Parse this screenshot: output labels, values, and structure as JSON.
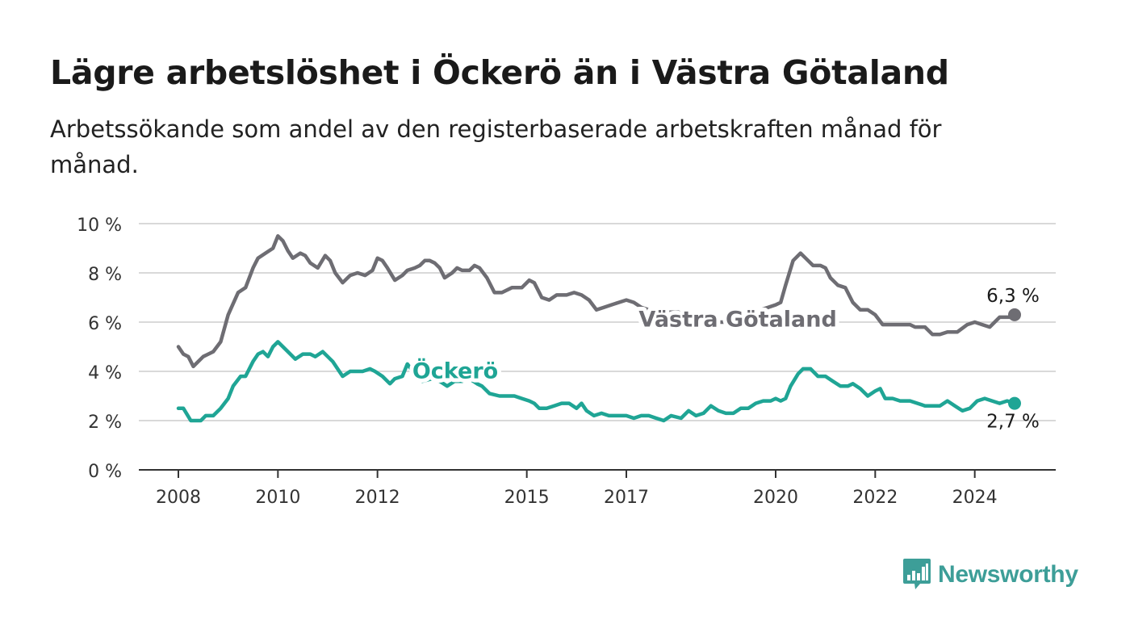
{
  "header": {
    "title": "Lägre arbetslöshet i Öckerö än i Västra Götaland",
    "subtitle": "Arbetssökande som andel av den registerbaserade arbetskraften månad för månad."
  },
  "brand": {
    "name": "Newsworthy",
    "color": "#3d9e98",
    "icon": "newsworthy-bar-chart-icon"
  },
  "colors": {
    "vastra": "#6e6d73",
    "ockero": "#1fa595",
    "grid": "#d9d9d9",
    "axis": "#333333"
  },
  "chart_data": {
    "type": "line",
    "x_unit": "year",
    "xlim": [
      2008,
      2025.8
    ],
    "ylim": [
      0,
      10
    ],
    "y_ticks": [
      0,
      2,
      4,
      6,
      8,
      10
    ],
    "y_tick_labels": [
      "0 %",
      "2 %",
      "4 %",
      "6 %",
      "8 %",
      "10 %"
    ],
    "x_ticks": [
      2008,
      2010,
      2012,
      2015,
      2017,
      2020,
      2022,
      2024
    ],
    "x_tick_labels": [
      "2008",
      "2010",
      "2012",
      "2015",
      "2017",
      "2020",
      "2022",
      "2024"
    ],
    "grid": "horizontal",
    "series": [
      {
        "name": "Västra Götaland",
        "color": "#6e6d73",
        "end_label": "6,3 %",
        "points": [
          [
            2008.0,
            5.0
          ],
          [
            2008.1,
            4.7
          ],
          [
            2008.2,
            4.6
          ],
          [
            2008.3,
            4.2
          ],
          [
            2008.5,
            4.6
          ],
          [
            2008.7,
            4.8
          ],
          [
            2008.85,
            5.2
          ],
          [
            2009.0,
            6.3
          ],
          [
            2009.2,
            7.2
          ],
          [
            2009.35,
            7.4
          ],
          [
            2009.5,
            8.2
          ],
          [
            2009.6,
            8.6
          ],
          [
            2009.75,
            8.8
          ],
          [
            2009.9,
            9.0
          ],
          [
            2010.0,
            9.5
          ],
          [
            2010.1,
            9.3
          ],
          [
            2010.2,
            8.9
          ],
          [
            2010.3,
            8.6
          ],
          [
            2010.45,
            8.8
          ],
          [
            2010.55,
            8.7
          ],
          [
            2010.65,
            8.4
          ],
          [
            2010.8,
            8.2
          ],
          [
            2010.95,
            8.7
          ],
          [
            2011.05,
            8.5
          ],
          [
            2011.15,
            8.0
          ],
          [
            2011.3,
            7.6
          ],
          [
            2011.45,
            7.9
          ],
          [
            2011.6,
            8.0
          ],
          [
            2011.75,
            7.9
          ],
          [
            2011.9,
            8.1
          ],
          [
            2012.0,
            8.6
          ],
          [
            2012.1,
            8.5
          ],
          [
            2012.2,
            8.2
          ],
          [
            2012.35,
            7.7
          ],
          [
            2012.5,
            7.9
          ],
          [
            2012.6,
            8.1
          ],
          [
            2012.75,
            8.2
          ],
          [
            2012.85,
            8.3
          ],
          [
            2012.95,
            8.5
          ],
          [
            2013.05,
            8.5
          ],
          [
            2013.15,
            8.4
          ],
          [
            2013.25,
            8.2
          ],
          [
            2013.35,
            7.8
          ],
          [
            2013.5,
            8.0
          ],
          [
            2013.6,
            8.2
          ],
          [
            2013.7,
            8.1
          ],
          [
            2013.85,
            8.1
          ],
          [
            2013.95,
            8.3
          ],
          [
            2014.05,
            8.2
          ],
          [
            2014.2,
            7.8
          ],
          [
            2014.35,
            7.2
          ],
          [
            2014.5,
            7.2
          ],
          [
            2014.7,
            7.4
          ],
          [
            2014.9,
            7.4
          ],
          [
            2015.05,
            7.7
          ],
          [
            2015.15,
            7.6
          ],
          [
            2015.3,
            7.0
          ],
          [
            2015.45,
            6.9
          ],
          [
            2015.6,
            7.1
          ],
          [
            2015.8,
            7.1
          ],
          [
            2015.95,
            7.2
          ],
          [
            2016.1,
            7.1
          ],
          [
            2016.25,
            6.9
          ],
          [
            2016.4,
            6.5
          ],
          [
            2016.55,
            6.6
          ],
          [
            2016.7,
            6.7
          ],
          [
            2016.85,
            6.8
          ],
          [
            2017.0,
            6.9
          ],
          [
            2017.15,
            6.8
          ],
          [
            2017.3,
            6.6
          ],
          [
            2017.45,
            6.5
          ],
          [
            2017.6,
            6.5
          ],
          [
            2017.75,
            6.4
          ],
          [
            2017.9,
            6.4
          ],
          [
            2018.05,
            6.4
          ],
          [
            2018.2,
            6.3
          ],
          [
            2018.35,
            6.2
          ],
          [
            2018.5,
            6.1
          ],
          [
            2018.65,
            6.1
          ],
          [
            2018.8,
            6.0
          ],
          [
            2018.95,
            6.0
          ],
          [
            2019.1,
            6.1
          ],
          [
            2019.25,
            6.2
          ],
          [
            2019.4,
            6.3
          ],
          [
            2019.55,
            6.4
          ],
          [
            2019.7,
            6.5
          ],
          [
            2019.85,
            6.6
          ],
          [
            2020.0,
            6.7
          ],
          [
            2020.1,
            6.8
          ],
          [
            2020.2,
            7.5
          ],
          [
            2020.35,
            8.5
          ],
          [
            2020.5,
            8.8
          ],
          [
            2020.6,
            8.6
          ],
          [
            2020.75,
            8.3
          ],
          [
            2020.9,
            8.3
          ],
          [
            2021.0,
            8.2
          ],
          [
            2021.1,
            7.8
          ],
          [
            2021.25,
            7.5
          ],
          [
            2021.4,
            7.4
          ],
          [
            2021.55,
            6.8
          ],
          [
            2021.7,
            6.5
          ],
          [
            2021.85,
            6.5
          ],
          [
            2022.0,
            6.3
          ],
          [
            2022.15,
            5.9
          ],
          [
            2022.3,
            5.9
          ],
          [
            2022.5,
            5.9
          ],
          [
            2022.7,
            5.9
          ],
          [
            2022.8,
            5.8
          ],
          [
            2023.0,
            5.8
          ],
          [
            2023.15,
            5.5
          ],
          [
            2023.3,
            5.5
          ],
          [
            2023.45,
            5.6
          ],
          [
            2023.65,
            5.6
          ],
          [
            2023.85,
            5.9
          ],
          [
            2024.0,
            6.0
          ],
          [
            2024.15,
            5.9
          ],
          [
            2024.3,
            5.8
          ],
          [
            2024.5,
            6.2
          ],
          [
            2024.7,
            6.2
          ],
          [
            2024.8,
            6.3
          ]
        ]
      },
      {
        "name": "Öckerö",
        "color": "#1fa595",
        "end_label": "2,7 %",
        "points": [
          [
            2008.0,
            2.5
          ],
          [
            2008.1,
            2.5
          ],
          [
            2008.25,
            2.0
          ],
          [
            2008.45,
            2.0
          ],
          [
            2008.55,
            2.2
          ],
          [
            2008.7,
            2.2
          ],
          [
            2008.85,
            2.5
          ],
          [
            2009.0,
            2.9
          ],
          [
            2009.1,
            3.4
          ],
          [
            2009.25,
            3.8
          ],
          [
            2009.35,
            3.8
          ],
          [
            2009.5,
            4.4
          ],
          [
            2009.6,
            4.7
          ],
          [
            2009.7,
            4.8
          ],
          [
            2009.8,
            4.6
          ],
          [
            2009.9,
            5.0
          ],
          [
            2010.0,
            5.2
          ],
          [
            2010.1,
            5.0
          ],
          [
            2010.2,
            4.8
          ],
          [
            2010.35,
            4.5
          ],
          [
            2010.5,
            4.7
          ],
          [
            2010.65,
            4.7
          ],
          [
            2010.75,
            4.6
          ],
          [
            2010.9,
            4.8
          ],
          [
            2011.0,
            4.6
          ],
          [
            2011.1,
            4.4
          ],
          [
            2011.2,
            4.1
          ],
          [
            2011.3,
            3.8
          ],
          [
            2011.45,
            4.0
          ],
          [
            2011.55,
            4.0
          ],
          [
            2011.7,
            4.0
          ],
          [
            2011.85,
            4.1
          ],
          [
            2011.95,
            4.0
          ],
          [
            2012.1,
            3.8
          ],
          [
            2012.25,
            3.5
          ],
          [
            2012.35,
            3.7
          ],
          [
            2012.5,
            3.8
          ],
          [
            2012.6,
            4.3
          ],
          [
            2012.75,
            3.9
          ],
          [
            2012.9,
            3.6
          ],
          [
            2013.1,
            3.7
          ],
          [
            2013.25,
            3.6
          ],
          [
            2013.4,
            3.4
          ],
          [
            2013.55,
            3.6
          ],
          [
            2013.7,
            3.6
          ],
          [
            2013.85,
            3.7
          ],
          [
            2014.0,
            3.5
          ],
          [
            2014.1,
            3.4
          ],
          [
            2014.25,
            3.1
          ],
          [
            2014.45,
            3.0
          ],
          [
            2014.6,
            3.0
          ],
          [
            2014.75,
            3.0
          ],
          [
            2014.9,
            2.9
          ],
          [
            2015.05,
            2.8
          ],
          [
            2015.15,
            2.7
          ],
          [
            2015.25,
            2.5
          ],
          [
            2015.4,
            2.5
          ],
          [
            2015.55,
            2.6
          ],
          [
            2015.7,
            2.7
          ],
          [
            2015.85,
            2.7
          ],
          [
            2016.0,
            2.5
          ],
          [
            2016.1,
            2.7
          ],
          [
            2016.2,
            2.4
          ],
          [
            2016.35,
            2.2
          ],
          [
            2016.5,
            2.3
          ],
          [
            2016.65,
            2.2
          ],
          [
            2016.85,
            2.2
          ],
          [
            2017.0,
            2.2
          ],
          [
            2017.15,
            2.1
          ],
          [
            2017.3,
            2.2
          ],
          [
            2017.45,
            2.2
          ],
          [
            2017.6,
            2.1
          ],
          [
            2017.75,
            2.0
          ],
          [
            2017.9,
            2.2
          ],
          [
            2018.1,
            2.1
          ],
          [
            2018.25,
            2.4
          ],
          [
            2018.4,
            2.2
          ],
          [
            2018.55,
            2.3
          ],
          [
            2018.7,
            2.6
          ],
          [
            2018.85,
            2.4
          ],
          [
            2019.0,
            2.3
          ],
          [
            2019.15,
            2.3
          ],
          [
            2019.3,
            2.5
          ],
          [
            2019.45,
            2.5
          ],
          [
            2019.6,
            2.7
          ],
          [
            2019.75,
            2.8
          ],
          [
            2019.9,
            2.8
          ],
          [
            2020.0,
            2.9
          ],
          [
            2020.1,
            2.8
          ],
          [
            2020.2,
            2.9
          ],
          [
            2020.3,
            3.4
          ],
          [
            2020.45,
            3.9
          ],
          [
            2020.55,
            4.1
          ],
          [
            2020.7,
            4.1
          ],
          [
            2020.85,
            3.8
          ],
          [
            2021.0,
            3.8
          ],
          [
            2021.15,
            3.6
          ],
          [
            2021.3,
            3.4
          ],
          [
            2021.45,
            3.4
          ],
          [
            2021.55,
            3.5
          ],
          [
            2021.7,
            3.3
          ],
          [
            2021.85,
            3.0
          ],
          [
            2022.0,
            3.2
          ],
          [
            2022.1,
            3.3
          ],
          [
            2022.2,
            2.9
          ],
          [
            2022.35,
            2.9
          ],
          [
            2022.5,
            2.8
          ],
          [
            2022.7,
            2.8
          ],
          [
            2022.85,
            2.7
          ],
          [
            2023.0,
            2.6
          ],
          [
            2023.15,
            2.6
          ],
          [
            2023.3,
            2.6
          ],
          [
            2023.45,
            2.8
          ],
          [
            2023.6,
            2.6
          ],
          [
            2023.75,
            2.4
          ],
          [
            2023.9,
            2.5
          ],
          [
            2024.05,
            2.8
          ],
          [
            2024.2,
            2.9
          ],
          [
            2024.35,
            2.8
          ],
          [
            2024.5,
            2.7
          ],
          [
            2024.65,
            2.8
          ],
          [
            2024.8,
            2.7
          ]
        ]
      }
    ],
    "annotations": [
      {
        "text": "Västra Götaland",
        "series": "Västra Götaland",
        "at": [
          2017.25,
          6.15
        ],
        "color": "#6e6d73"
      },
      {
        "text": "Öckerö",
        "series": "Öckerö",
        "at": [
          2012.7,
          4.05
        ],
        "color": "#1fa595"
      }
    ]
  }
}
